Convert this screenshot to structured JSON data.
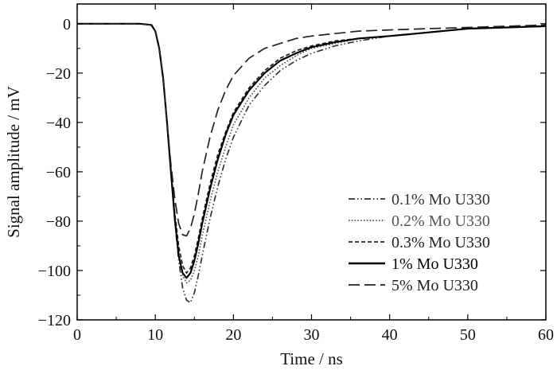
{
  "chart_data": {
    "type": "line",
    "title": "",
    "xlabel": "Time / ns",
    "ylabel": "Signal amplitude / mV",
    "xlim": [
      0,
      60
    ],
    "ylim": [
      -120,
      8
    ],
    "xticks": [
      0,
      10,
      20,
      30,
      40,
      50,
      60
    ],
    "yticks": [
      0,
      -20,
      -40,
      -60,
      -80,
      -100,
      -120
    ],
    "grid": false,
    "legend_position": "bottom-right",
    "series": [
      {
        "name": "0.1% Mo U330",
        "color": "#333333",
        "dash": "dash-dot-dot",
        "x": [
          0,
          8,
          9.5,
          10,
          10.5,
          11,
          11.5,
          12,
          12.5,
          13,
          13.5,
          14,
          14.5,
          15,
          15.5,
          16,
          17,
          18,
          19,
          20,
          22,
          24,
          26,
          28,
          30,
          33,
          36,
          40,
          45,
          50,
          55,
          60
        ],
        "y": [
          0,
          0,
          -0.5,
          -3,
          -10,
          -22,
          -40,
          -60,
          -80,
          -96,
          -107,
          -112,
          -113,
          -109,
          -102,
          -94,
          -79,
          -66,
          -55,
          -46,
          -33,
          -25,
          -19,
          -15,
          -12,
          -9,
          -7,
          -5,
          -3.5,
          -2,
          -1.5,
          -1
        ]
      },
      {
        "name": "0.2% Mo U330",
        "color": "#555555",
        "dash": "dotted",
        "x": [
          0,
          8,
          9.5,
          10,
          10.5,
          11,
          11.5,
          12,
          12.5,
          13,
          13.5,
          14,
          14.5,
          15,
          15.5,
          16,
          17,
          18,
          19,
          20,
          22,
          24,
          26,
          28,
          30,
          33,
          36,
          40,
          45,
          50,
          55,
          60
        ],
        "y": [
          0,
          0,
          -0.5,
          -3,
          -10,
          -22,
          -40,
          -60,
          -79,
          -93,
          -102,
          -105,
          -104,
          -100,
          -94,
          -86,
          -72,
          -60,
          -50,
          -41,
          -30,
          -22,
          -17,
          -13,
          -10,
          -8,
          -6,
          -5,
          -3.5,
          -2,
          -1.5,
          -1
        ]
      },
      {
        "name": "0.3% Mo U330",
        "color": "#222222",
        "dash": "short-dash",
        "x": [
          0,
          8,
          9.5,
          10,
          10.5,
          11,
          11.5,
          12,
          12.5,
          13,
          13.5,
          14,
          14.5,
          15,
          15.5,
          16,
          17,
          18,
          19,
          20,
          22,
          24,
          26,
          28,
          30,
          33,
          36,
          40,
          45,
          50,
          55,
          60
        ],
        "y": [
          0,
          0,
          -0.5,
          -3,
          -10,
          -22,
          -40,
          -59,
          -77,
          -90,
          -98,
          -101,
          -99,
          -94,
          -87,
          -79,
          -65,
          -53,
          -44,
          -36,
          -26,
          -19,
          -14,
          -11,
          -9,
          -7,
          -6,
          -5,
          -3.5,
          -2,
          -1.5,
          -1
        ]
      },
      {
        "name": "1% Mo U330",
        "color": "#000000",
        "dash": "solid",
        "x": [
          0,
          8,
          9.5,
          10,
          10.5,
          11,
          11.5,
          12,
          12.5,
          13,
          13.5,
          14,
          14.5,
          15,
          15.5,
          16,
          17,
          18,
          19,
          20,
          22,
          24,
          26,
          28,
          30,
          33,
          36,
          40,
          45,
          50,
          55,
          60
        ],
        "y": [
          0,
          0,
          -0.5,
          -3,
          -10,
          -22,
          -40,
          -60,
          -79,
          -94,
          -101,
          -103,
          -101,
          -96,
          -89,
          -81,
          -67,
          -55,
          -45,
          -37,
          -27,
          -20,
          -15,
          -12,
          -9.5,
          -7.5,
          -6,
          -5,
          -3.5,
          -2,
          -1.5,
          -1
        ]
      },
      {
        "name": "5% Mo U330",
        "color": "#222222",
        "dash": "long-dash",
        "x": [
          0,
          8,
          9.5,
          10,
          10.5,
          11,
          11.5,
          12,
          12.5,
          13,
          13.5,
          14,
          14.5,
          15,
          15.5,
          16,
          17,
          18,
          19,
          20,
          22,
          24,
          26,
          28,
          30,
          33,
          36,
          40,
          45,
          50,
          55,
          60
        ],
        "y": [
          0,
          0,
          -0.5,
          -3,
          -10,
          -22,
          -40,
          -57,
          -71,
          -81,
          -85.5,
          -86,
          -83,
          -77,
          -69,
          -60,
          -46,
          -35,
          -27,
          -21,
          -14,
          -10,
          -8,
          -6,
          -5,
          -4,
          -3,
          -2.5,
          -2,
          -1.5,
          -1,
          -0.5
        ]
      }
    ]
  }
}
